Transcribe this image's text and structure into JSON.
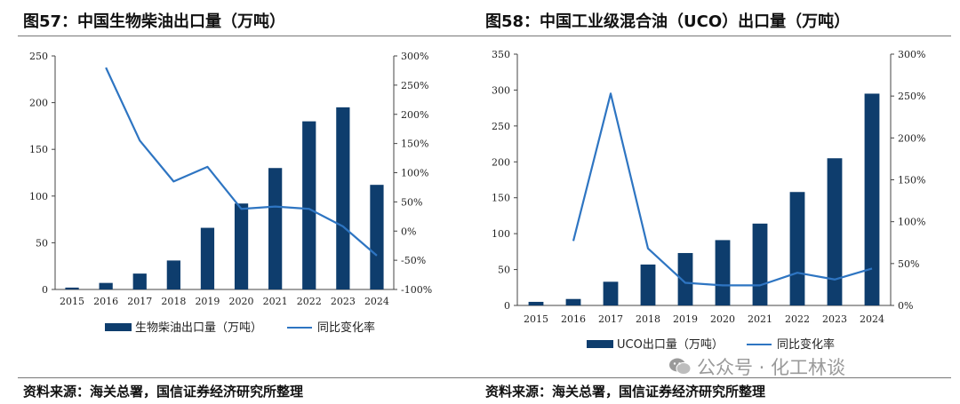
{
  "charts": [
    {
      "title": "图57：中国生物柴油出口量（万吨）",
      "source": "资料来源：海关总署，国信证券经济研究所整理",
      "chart_data": {
        "type": "bar",
        "categories": [
          "2015",
          "2016",
          "2017",
          "2018",
          "2019",
          "2020",
          "2021",
          "2022",
          "2023",
          "2024"
        ],
        "series": [
          {
            "name": "生物柴油出口量（万吨）",
            "type": "bar",
            "axis": "left",
            "values": [
              2,
              7,
              17,
              31,
              66,
              92,
              130,
              180,
              195,
              112
            ]
          },
          {
            "name": "同比变化率",
            "type": "line",
            "axis": "right",
            "values": [
              null,
              280,
              155,
              85,
              110,
              38,
              42,
              38,
              8,
              -42
            ]
          }
        ],
        "y_left": {
          "min": 0,
          "max": 250,
          "ticks": [
            "0",
            "50",
            "100",
            "150",
            "200",
            "250"
          ]
        },
        "y_right": {
          "min": -100,
          "max": 300,
          "ticks": [
            "-100%",
            "-50%",
            "0%",
            "50%",
            "100%",
            "150%",
            "200%",
            "250%",
            "300%"
          ]
        },
        "colors": {
          "bar": "#0e3d6d",
          "line": "#2e75c2"
        },
        "legend_position": "bottom"
      }
    },
    {
      "title": "图58：中国工业级混合油（UCO）出口量（万吨）",
      "source": "资料来源：海关总署，国信证券经济研究所整理",
      "chart_data": {
        "type": "bar",
        "categories": [
          "2015",
          "2016",
          "2017",
          "2018",
          "2019",
          "2020",
          "2021",
          "2022",
          "2023",
          "2024"
        ],
        "series": [
          {
            "name": "UCO出口量（万吨）",
            "type": "bar",
            "axis": "left",
            "values": [
              5,
              9,
              33,
              57,
              73,
              91,
              114,
              158,
              205,
              295
            ]
          },
          {
            "name": "同比变化率",
            "type": "line",
            "axis": "right",
            "values": [
              null,
              77,
              253,
              68,
              27,
              24,
              24,
              39,
              31,
              44
            ]
          }
        ],
        "y_left": {
          "min": 0,
          "max": 350,
          "ticks": [
            "0",
            "50",
            "100",
            "150",
            "200",
            "250",
            "300",
            "350"
          ]
        },
        "y_right": {
          "min": 0,
          "max": 300,
          "ticks": [
            "0%",
            "50%",
            "100%",
            "150%",
            "200%",
            "250%",
            "300%"
          ]
        },
        "colors": {
          "bar": "#0e3d6d",
          "line": "#2e75c2"
        },
        "legend_position": "bottom"
      }
    }
  ],
  "watermark": {
    "text": "公众号 · 化工林谈",
    "icon": "wechat-icon"
  }
}
